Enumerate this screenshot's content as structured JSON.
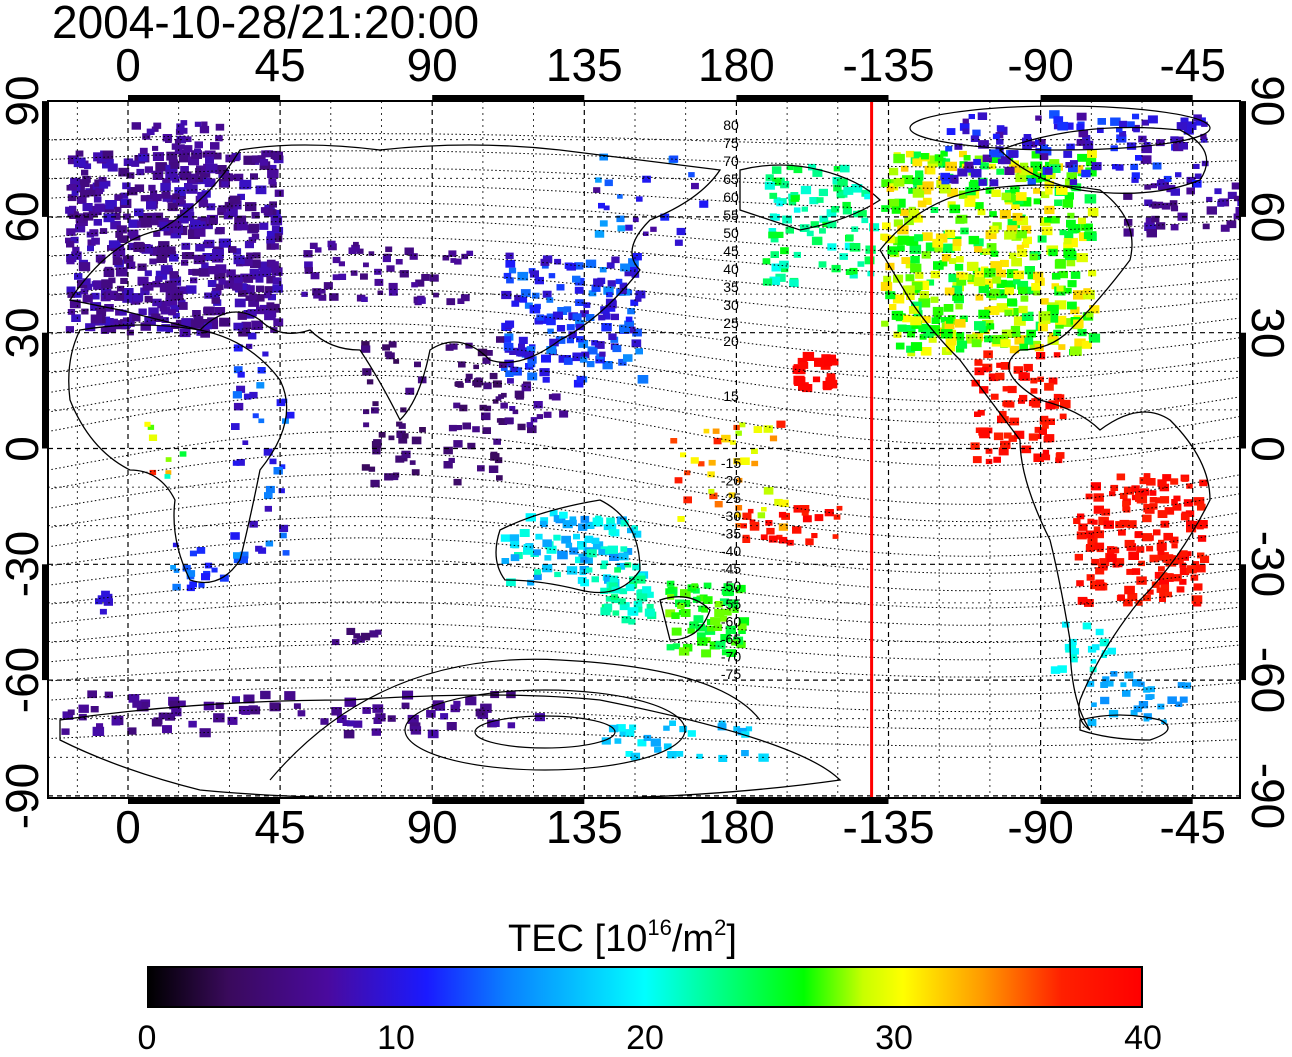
{
  "title": "2004-10-28/21:20:00",
  "map": {
    "top_axis_ticks": [
      "0",
      "45",
      "90",
      "135",
      "180",
      "-135",
      "-90",
      "-45"
    ],
    "bottom_axis_ticks": [
      "0",
      "45",
      "90",
      "135",
      "180",
      "-135",
      "-90",
      "-45"
    ],
    "left_axis_ticks": [
      "90",
      "60",
      "30",
      "0",
      "-30",
      "-60",
      "-90"
    ],
    "right_axis_ticks": [
      "90",
      "60",
      "30",
      "0",
      "-30",
      "-60",
      "-90"
    ],
    "contour_labels_north": [
      "80",
      "75",
      "70",
      "65",
      "60",
      "55",
      "50",
      "45",
      "40",
      "35",
      "30",
      "25",
      "20",
      "15"
    ],
    "contour_labels_south": [
      "-15",
      "-20",
      "-25",
      "-30",
      "-35",
      "-40",
      "-45",
      "-50",
      "-55",
      "-60",
      "-65",
      "-70",
      "-75"
    ],
    "terminator_longitude": -140,
    "colors": {
      "terminator": "#ff0000"
    }
  },
  "colorbar": {
    "title_prefix": "TEC  [10",
    "title_exp1": "16",
    "title_mid": "/m",
    "title_exp2": "2",
    "title_suffix": "]",
    "ticks": [
      "0",
      "10",
      "20",
      "30",
      "40"
    ],
    "range": [
      0,
      40
    ]
  }
}
